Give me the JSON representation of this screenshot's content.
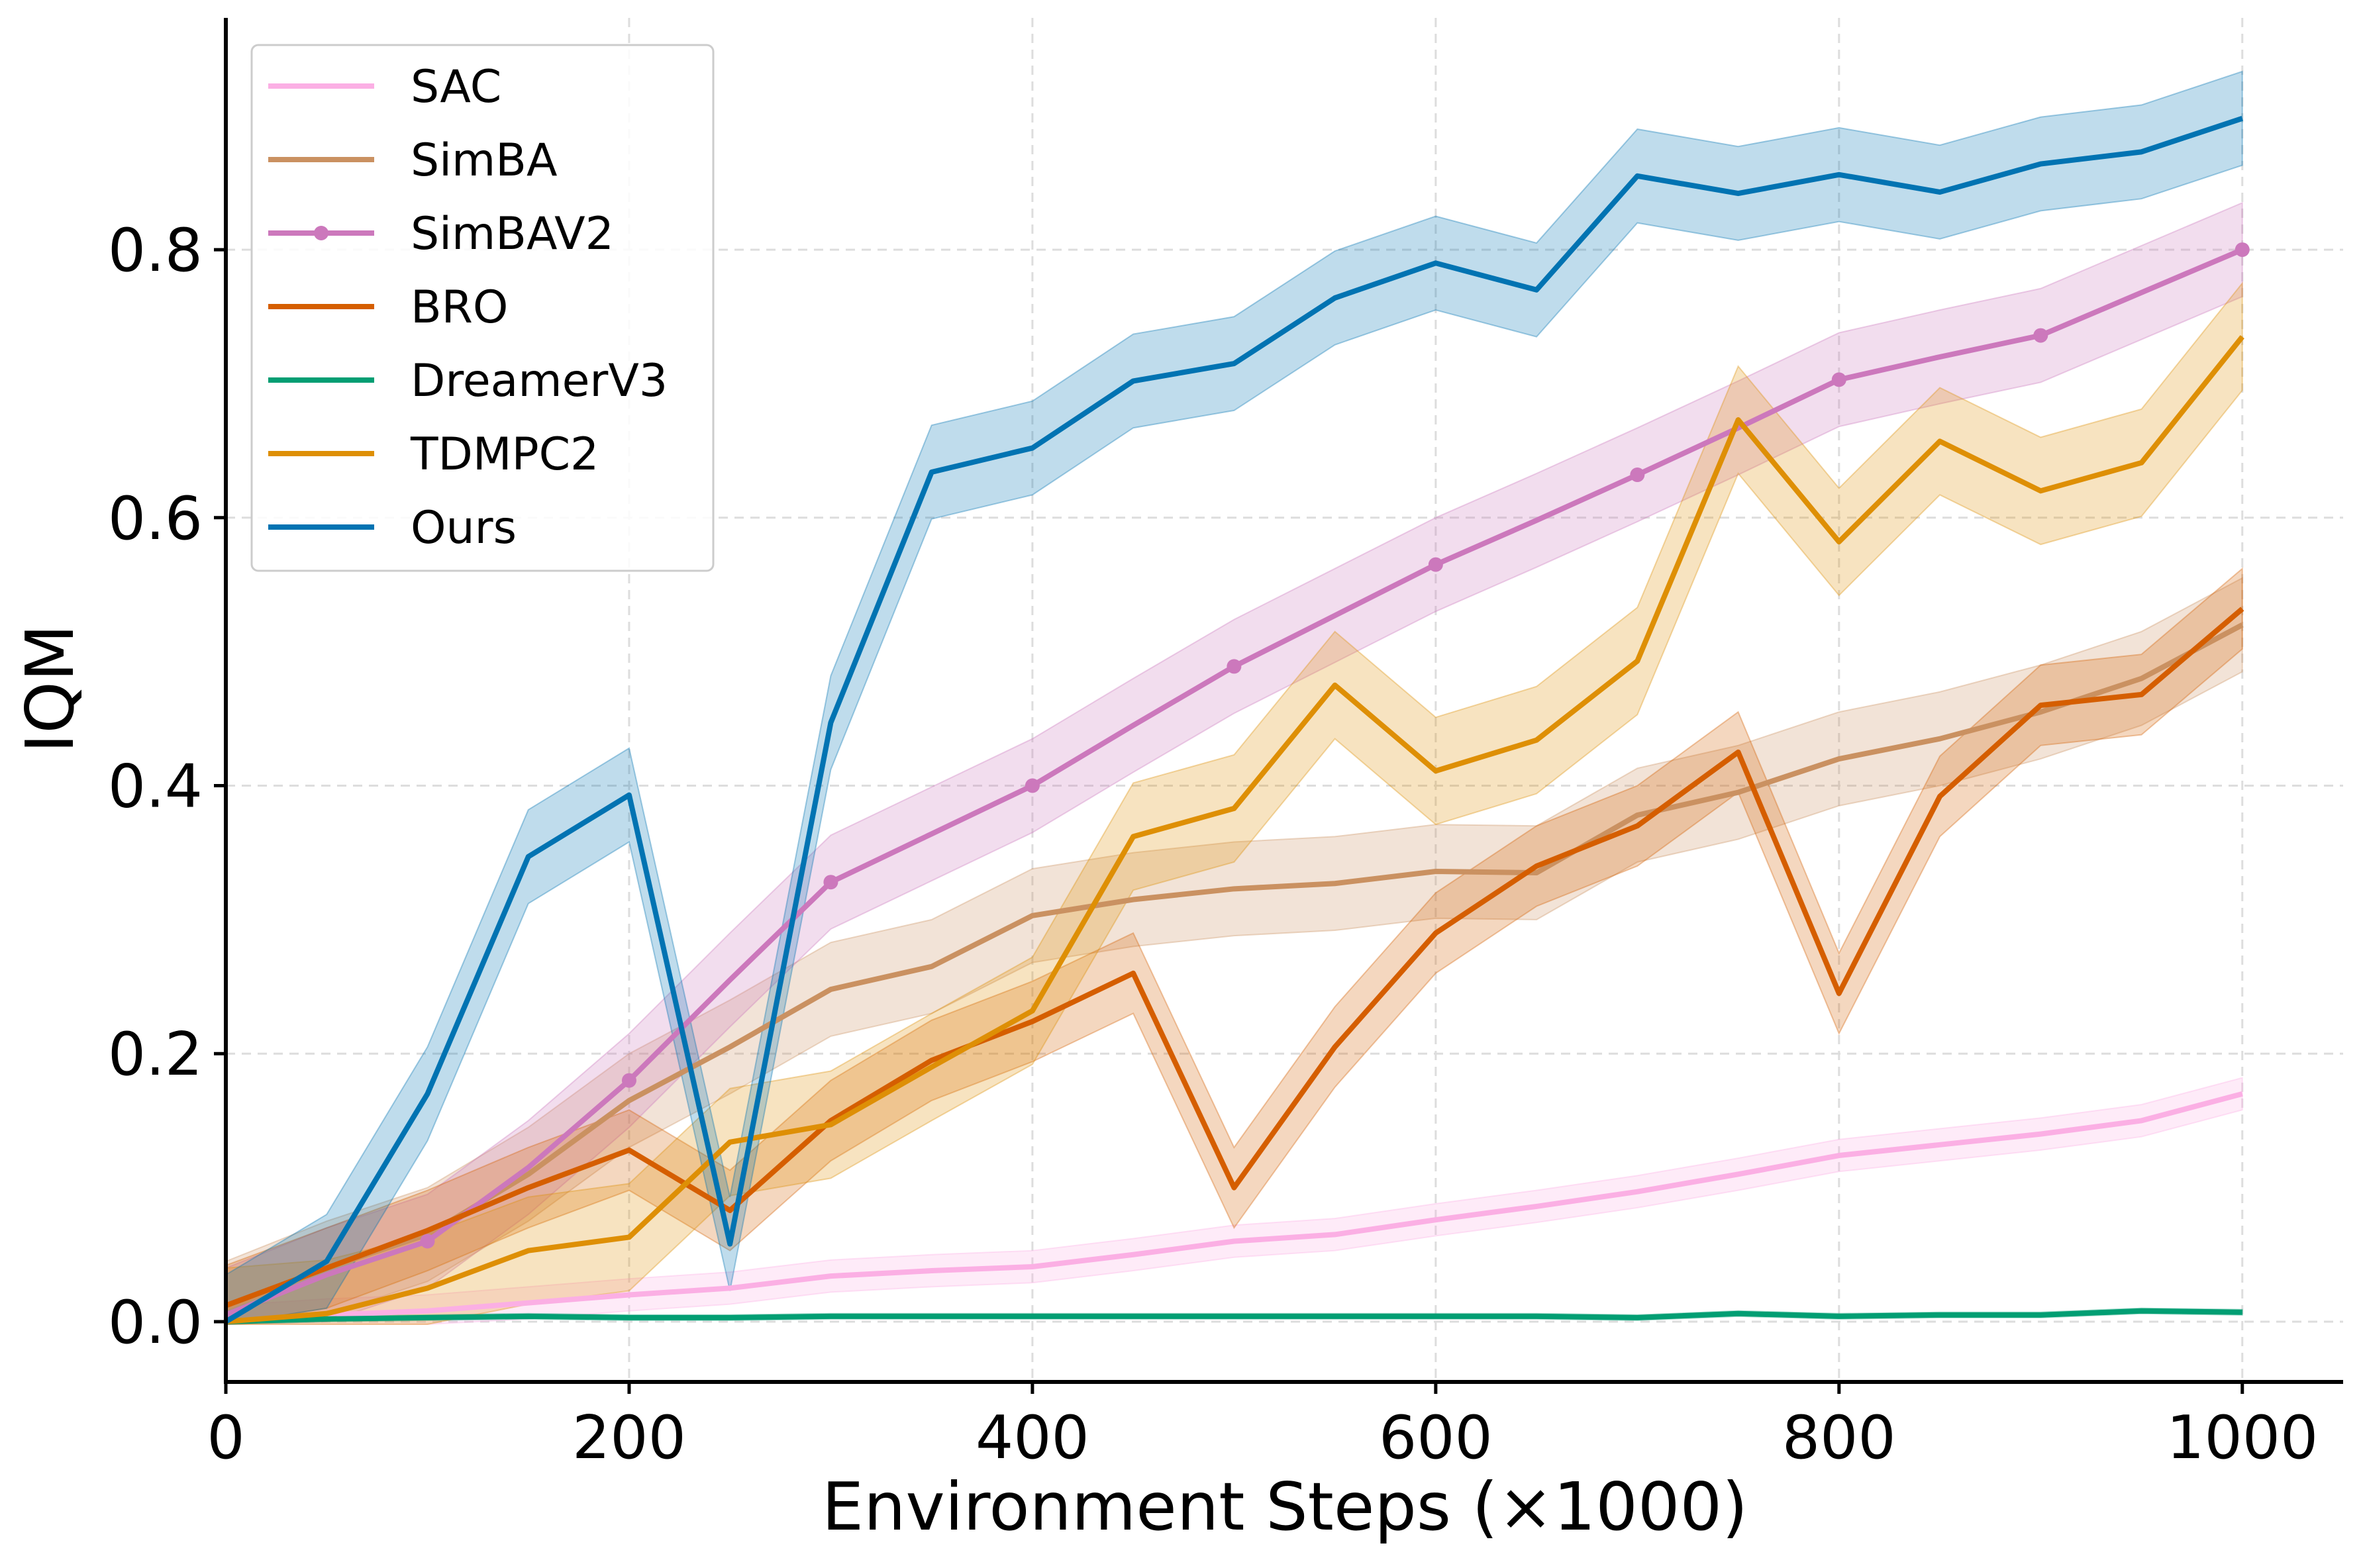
{
  "chart_data": {
    "type": "line",
    "title": "",
    "xlabel": "Environment Steps (×1000)",
    "ylabel": "IQM",
    "xlim": [
      0,
      1050
    ],
    "ylim": [
      -0.045,
      0.973
    ],
    "xticks": [
      0,
      200,
      400,
      600,
      800,
      1000
    ],
    "yticks": [
      0.0,
      0.2,
      0.4,
      0.6,
      0.8
    ],
    "xtick_labels": [
      "0",
      "200",
      "400",
      "600",
      "800",
      "1000"
    ],
    "ytick_labels": [
      "0.0",
      "0.2",
      "0.4",
      "0.6",
      "0.8"
    ],
    "grid": true,
    "legend_position": "top-left",
    "x": [
      0,
      50,
      100,
      150,
      200,
      250,
      300,
      350,
      400,
      450,
      500,
      550,
      600,
      650,
      700,
      750,
      800,
      850,
      900,
      950,
      1000
    ],
    "series": [
      {
        "name": "SAC",
        "color": "#fbafe4",
        "marker": false,
        "band": 0.012,
        "values": [
          0,
          0.005,
          0.008,
          0.014,
          0.02,
          0.025,
          0.034,
          0.038,
          0.041,
          0.05,
          0.06,
          0.065,
          0.076,
          0.086,
          0.097,
          0.11,
          0.124,
          0.132,
          0.14,
          0.15,
          0.17
        ]
      },
      {
        "name": "SimBA",
        "color": "#ca9161",
        "marker": false,
        "band": 0.035,
        "values": [
          0.01,
          0.04,
          0.065,
          0.11,
          0.165,
          0.205,
          0.248,
          0.265,
          0.303,
          0.315,
          0.323,
          0.327,
          0.336,
          0.335,
          0.378,
          0.395,
          0.42,
          0.435,
          0.455,
          0.48,
          0.52
        ]
      },
      {
        "name": "SimBAV2",
        "color": "#cc78bc",
        "marker": true,
        "band": 0.035,
        "values": [
          0.005,
          0.035,
          0.06,
          0.115,
          0.18,
          0.255,
          0.328,
          0.364,
          0.4,
          0.445,
          0.489,
          0.527,
          0.565,
          0.598,
          0.632,
          0.667,
          0.703,
          0.72,
          0.736,
          0.768,
          0.8
        ]
      },
      {
        "name": "BRO",
        "color": "#d55e00",
        "marker": false,
        "band": 0.03,
        "values": [
          0.012,
          0.04,
          0.068,
          0.1,
          0.128,
          0.083,
          0.15,
          0.195,
          0.224,
          0.26,
          0.1,
          0.205,
          0.29,
          0.34,
          0.37,
          0.425,
          0.245,
          0.392,
          0.46,
          0.468,
          0.532
        ]
      },
      {
        "name": "DreamerV3",
        "color": "#029e73",
        "marker": false,
        "band": 0.002,
        "values": [
          0,
          0.002,
          0.003,
          0.004,
          0.003,
          0.003,
          0.004,
          0.004,
          0.004,
          0.004,
          0.004,
          0.004,
          0.004,
          0.004,
          0.003,
          0.006,
          0.004,
          0.005,
          0.005,
          0.008,
          0.007
        ]
      },
      {
        "name": "TDMPC2",
        "color": "#de8f05",
        "marker": false,
        "band": 0.04,
        "values": [
          0,
          0.006,
          0.025,
          0.053,
          0.063,
          0.134,
          0.147,
          0.19,
          0.232,
          0.362,
          0.383,
          0.475,
          0.411,
          0.434,
          0.493,
          0.673,
          0.582,
          0.657,
          0.62,
          0.641,
          0.735
        ]
      },
      {
        "name": "Ours",
        "color": "#0173b2",
        "marker": false,
        "band": 0.035,
        "values": [
          0,
          0.045,
          0.17,
          0.347,
          0.393,
          0.058,
          0.447,
          0.634,
          0.652,
          0.702,
          0.715,
          0.764,
          0.79,
          0.77,
          0.855,
          0.842,
          0.856,
          0.843,
          0.864,
          0.873,
          0.898
        ]
      }
    ]
  }
}
